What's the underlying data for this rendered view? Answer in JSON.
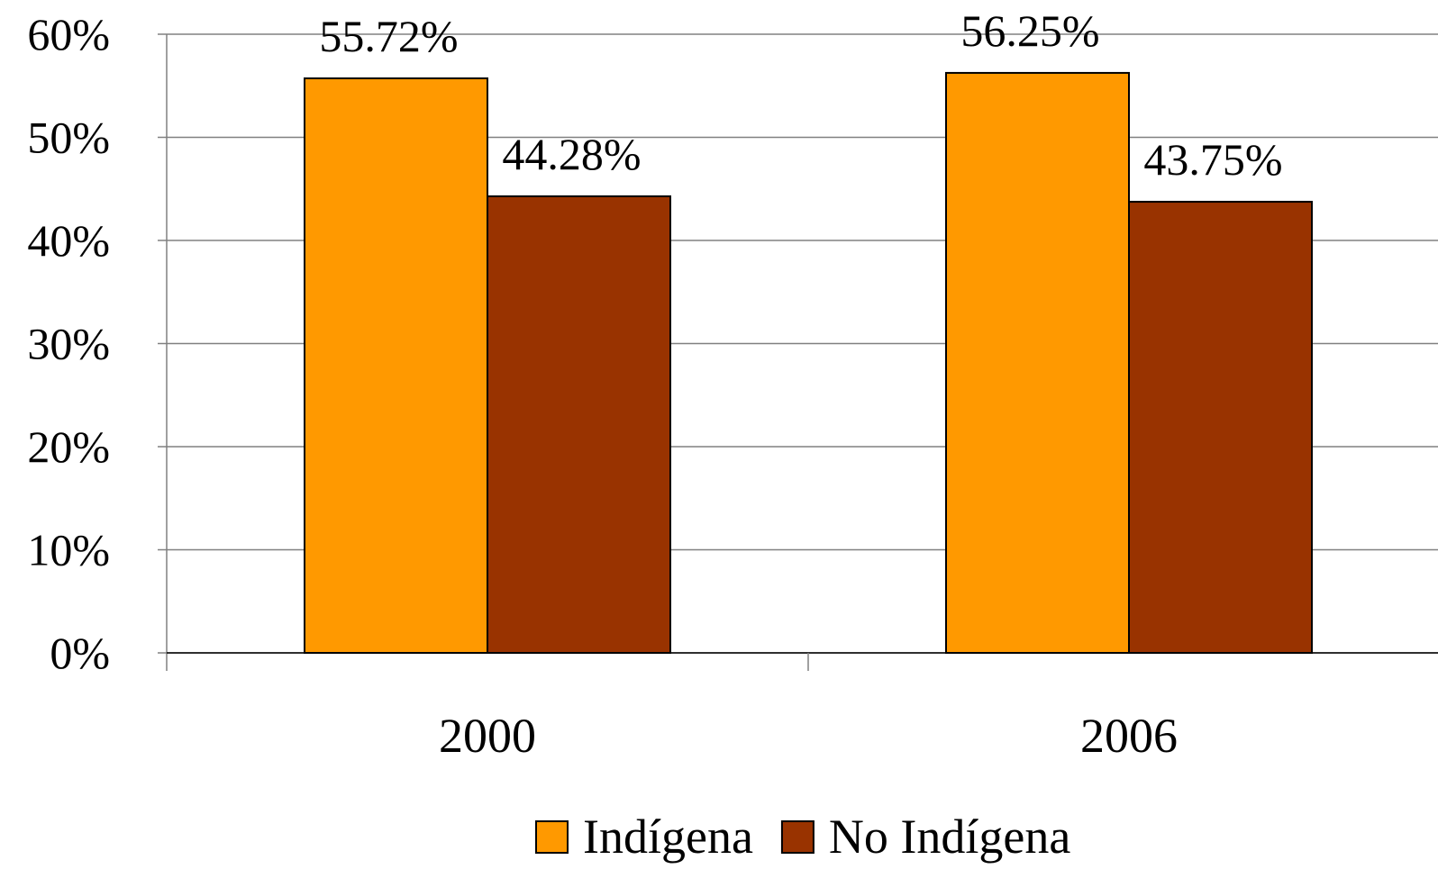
{
  "chart_data": {
    "type": "bar",
    "categories": [
      "2000",
      "2006"
    ],
    "series": [
      {
        "name": "Indígena",
        "color": "#FF9900",
        "values": [
          55.72,
          56.25
        ],
        "labels": [
          "55.72%",
          "56.25%"
        ]
      },
      {
        "name": "No Indígena",
        "color": "#993300",
        "values": [
          44.28,
          43.75
        ],
        "labels": [
          "44.28%",
          "43.75%"
        ]
      }
    ],
    "ylim": [
      0,
      60
    ],
    "y_ticks": [
      0,
      10,
      20,
      30,
      40,
      50,
      60
    ],
    "y_tick_labels": [
      "0%",
      "10%",
      "20%",
      "30%",
      "40%",
      "50%",
      "60%"
    ],
    "grid": true,
    "legend_position": "bottom"
  }
}
